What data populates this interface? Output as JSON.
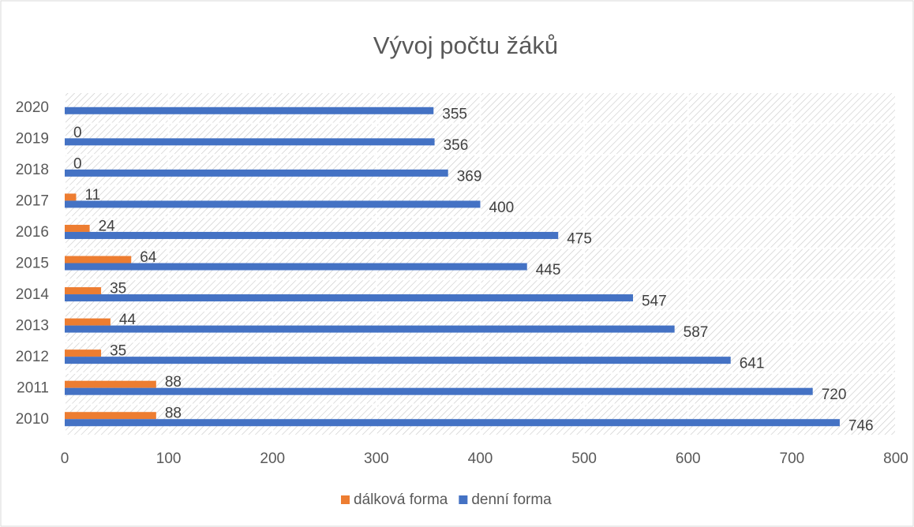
{
  "chart_data": {
    "type": "hbar",
    "title": "Vývoj počtu žáků",
    "categories": [
      "2010",
      "2011",
      "2012",
      "2013",
      "2014",
      "2015",
      "2016",
      "2017",
      "2018",
      "2019",
      "2020"
    ],
    "series": [
      {
        "name": "dálková forma",
        "color": "#ed7d31",
        "values": [
          88,
          88,
          35,
          44,
          35,
          64,
          24,
          11,
          0,
          0,
          null
        ]
      },
      {
        "name": "denní forma",
        "color": "#4472c4",
        "values": [
          746,
          720,
          641,
          587,
          547,
          445,
          475,
          400,
          369,
          356,
          355
        ]
      }
    ],
    "xlim": [
      0,
      800
    ],
    "xticks": [
      0,
      100,
      200,
      300,
      400,
      500,
      600,
      700,
      800
    ],
    "grid": true,
    "legend": "bottom"
  }
}
